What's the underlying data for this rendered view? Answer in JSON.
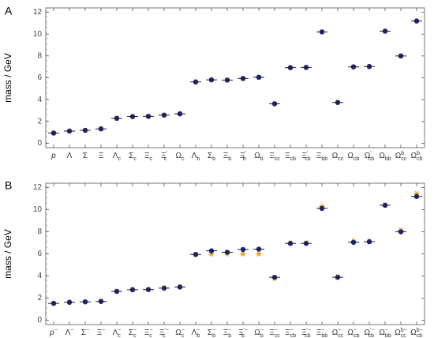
{
  "chart_data": [
    {
      "type": "scatter",
      "panel_label": "A",
      "ylabel": "mass / GeV",
      "ylim": [
        -0.4,
        12.4
      ],
      "yticks": [
        0,
        2,
        4,
        6,
        8,
        10,
        12
      ],
      "categories": [
        "p",
        "Λ",
        "Σ",
        "Ξ",
        "Λc",
        "Σc",
        "Ξc",
        "Ξ'c",
        "Ωc",
        "Λb",
        "Σb",
        "Ξb",
        "Ξ'b",
        "Ωb",
        "Ξcc",
        "Ξcb",
        "Ξ'cb",
        "Ξbb",
        "Ωcc",
        "Ωcb",
        "Ω'cb",
        "Ωbb",
        "Ωbcc",
        "Ωbcb"
      ],
      "tick_labels": [
        {
          "base": "p",
          "sub": "",
          "sup": ""
        },
        {
          "base": "Λ",
          "sub": "",
          "sup": ""
        },
        {
          "base": "Σ",
          "sub": "",
          "sup": ""
        },
        {
          "base": "Ξ",
          "sub": "",
          "sup": ""
        },
        {
          "base": "Λ",
          "sub": "c",
          "sup": ""
        },
        {
          "base": "Σ",
          "sub": "c",
          "sup": ""
        },
        {
          "base": "Ξ",
          "sub": "c",
          "sup": ""
        },
        {
          "base": "Ξ",
          "sub": "c",
          "sup": "'"
        },
        {
          "base": "Ω",
          "sub": "c",
          "sup": ""
        },
        {
          "base": "Λ",
          "sub": "b",
          "sup": ""
        },
        {
          "base": "Σ",
          "sub": "b",
          "sup": ""
        },
        {
          "base": "Ξ",
          "sub": "b",
          "sup": ""
        },
        {
          "base": "Ξ",
          "sub": "b",
          "sup": "'"
        },
        {
          "base": "Ω",
          "sub": "b",
          "sup": ""
        },
        {
          "base": "Ξ",
          "sub": "cc",
          "sup": ""
        },
        {
          "base": "Ξ",
          "sub": "cb",
          "sup": ""
        },
        {
          "base": "Ξ",
          "sub": "cb",
          "sup": "'"
        },
        {
          "base": "Ξ",
          "sub": "bb",
          "sup": ""
        },
        {
          "base": "Ω",
          "sub": "cc",
          "sup": ""
        },
        {
          "base": "Ω",
          "sub": "cb",
          "sup": ""
        },
        {
          "base": "Ω",
          "sub": "cb",
          "sup": "'"
        },
        {
          "base": "Ω",
          "sub": "bb",
          "sup": ""
        },
        {
          "base": "Ω",
          "sub": "cc",
          "sup": "b"
        },
        {
          "base": "Ω",
          "sub": "cb",
          "sup": "b"
        }
      ],
      "series": [
        {
          "marker": "circle",
          "color": "#1a237e",
          "values": [
            0.94,
            1.12,
            1.19,
            1.32,
            2.29,
            2.45,
            2.47,
            2.58,
            2.7,
            5.62,
            5.81,
            5.79,
            5.94,
            6.05,
            3.62,
            6.93,
            6.95,
            10.2,
            3.74,
            7.0,
            7.03,
            10.27,
            8.0,
            11.2
          ]
        },
        {
          "marker": "dash",
          "color": "#222222",
          "values": [
            0.94,
            1.12,
            1.19,
            1.32,
            2.29,
            2.45,
            2.47,
            2.58,
            2.7,
            5.62,
            5.81,
            5.79,
            5.94,
            6.05,
            3.62,
            6.93,
            6.95,
            10.2,
            3.74,
            7.0,
            7.03,
            10.27,
            8.0,
            11.2
          ]
        },
        {
          "marker": "star",
          "color": "#f39c12",
          "values": [
            0.94,
            1.12,
            1.19,
            1.32,
            2.29,
            2.45,
            2.47,
            2.58,
            2.7,
            5.62,
            5.81,
            5.79,
            5.94,
            6.05,
            3.62,
            6.93,
            6.95,
            10.2,
            3.74,
            7.0,
            7.03,
            10.27,
            8.0,
            11.2
          ]
        }
      ]
    },
    {
      "type": "scatter",
      "panel_label": "B",
      "ylabel": "mass / GeV",
      "ylim": [
        -0.4,
        12.4
      ],
      "yticks": [
        0,
        2,
        4,
        6,
        8,
        10,
        12
      ],
      "categories": [
        "p−",
        "Λ−",
        "Σ−",
        "Ξ−",
        "Λc−",
        "Σc−",
        "Ξc−",
        "Ξ'c−",
        "Ωc−",
        "Λb−",
        "Σb−",
        "Ξb−",
        "Ξ'b−",
        "Ωb−",
        "Ξcc−",
        "Ξcb−",
        "Ξ'cb−",
        "Ξbb−",
        "Ωcc−",
        "Ωcb−",
        "Ω'cb−",
        "Ωbb−",
        "Ωbcc−",
        "Ωbcb−"
      ],
      "tick_labels": [
        {
          "base": "p",
          "sub": "",
          "sup": "−"
        },
        {
          "base": "Λ",
          "sub": "",
          "sup": "−"
        },
        {
          "base": "Σ",
          "sub": "",
          "sup": "−"
        },
        {
          "base": "Ξ",
          "sub": "",
          "sup": "−"
        },
        {
          "base": "Λ",
          "sub": "c",
          "sup": "−"
        },
        {
          "base": "Σ",
          "sub": "c",
          "sup": "−"
        },
        {
          "base": "Ξ",
          "sub": "c",
          "sup": "−"
        },
        {
          "base": "Ξ",
          "sub": "c",
          "sup": "'−"
        },
        {
          "base": "Ω",
          "sub": "c",
          "sup": "−"
        },
        {
          "base": "Λ",
          "sub": "b",
          "sup": "−"
        },
        {
          "base": "Σ",
          "sub": "b",
          "sup": "−"
        },
        {
          "base": "Ξ",
          "sub": "b",
          "sup": "−"
        },
        {
          "base": "Ξ",
          "sub": "b",
          "sup": "'−"
        },
        {
          "base": "Ω",
          "sub": "b",
          "sup": "−"
        },
        {
          "base": "Ξ",
          "sub": "cc",
          "sup": "−"
        },
        {
          "base": "Ξ",
          "sub": "cb",
          "sup": "−"
        },
        {
          "base": "Ξ",
          "sub": "cb",
          "sup": "'−"
        },
        {
          "base": "Ξ",
          "sub": "bb",
          "sup": "−"
        },
        {
          "base": "Ω",
          "sub": "cc",
          "sup": "−"
        },
        {
          "base": "Ω",
          "sub": "cb",
          "sup": "−"
        },
        {
          "base": "Ω",
          "sub": "cb",
          "sup": "'−"
        },
        {
          "base": "Ω",
          "sub": "bb",
          "sup": "−"
        },
        {
          "base": "Ω",
          "sub": "cc",
          "sup": "b−"
        },
        {
          "base": "Ω",
          "sub": "cb",
          "sup": "b−"
        }
      ],
      "series": [
        {
          "marker": "circle",
          "color": "#1a237e",
          "values": [
            1.52,
            1.62,
            1.66,
            1.69,
            2.6,
            2.75,
            2.77,
            2.9,
            3.0,
            5.95,
            6.28,
            6.15,
            6.4,
            6.43,
            3.88,
            6.95,
            6.95,
            10.12,
            3.88,
            7.05,
            7.1,
            10.4,
            8.0,
            11.2
          ]
        },
        {
          "marker": "dash",
          "color": "#222222",
          "values": [
            1.52,
            1.62,
            1.66,
            1.69,
            2.6,
            2.75,
            2.77,
            2.9,
            3.0,
            5.95,
            6.28,
            6.15,
            6.4,
            6.43,
            3.88,
            6.95,
            6.95,
            10.12,
            3.88,
            7.05,
            7.1,
            10.4,
            8.0,
            11.2
          ]
        },
        {
          "marker": "star",
          "color": "#f39c12",
          "values": [
            1.52,
            1.62,
            1.66,
            1.78,
            2.62,
            2.8,
            2.78,
            2.92,
            3.05,
            5.95,
            6.0,
            6.0,
            6.0,
            6.0,
            3.78,
            7.0,
            7.0,
            10.3,
            3.95,
            7.15,
            7.15,
            10.45,
            8.15,
            11.45
          ]
        }
      ]
    }
  ]
}
